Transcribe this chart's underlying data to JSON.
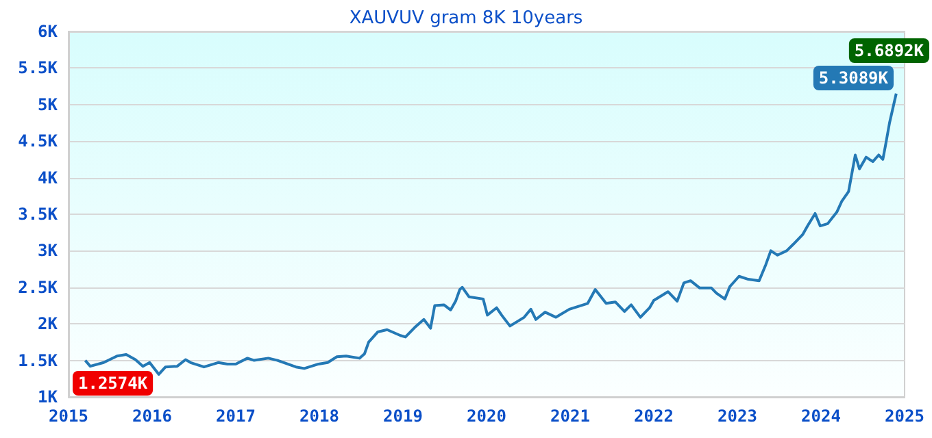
{
  "chart_data": {
    "type": "line",
    "title": "XAUVUV gram 8K 10years",
    "x": [
      2015.2,
      2015.26,
      2015.42,
      2015.58,
      2015.69,
      2015.8,
      2015.89,
      2015.97,
      2016.08,
      2016.16,
      2016.3,
      2016.4,
      2016.46,
      2016.62,
      2016.79,
      2016.9,
      2017.0,
      2017.14,
      2017.22,
      2017.39,
      2017.5,
      2017.72,
      2017.82,
      2017.99,
      2018.1,
      2018.21,
      2018.32,
      2018.48,
      2018.54,
      2018.59,
      2018.7,
      2018.81,
      2018.97,
      2019.03,
      2019.14,
      2019.25,
      2019.33,
      2019.38,
      2019.49,
      2019.57,
      2019.63,
      2019.68,
      2019.71,
      2019.79,
      2019.96,
      2020.01,
      2020.12,
      2020.18,
      2020.28,
      2020.45,
      2020.53,
      2020.59,
      2020.7,
      2020.83,
      2020.99,
      2021.21,
      2021.3,
      2021.43,
      2021.54,
      2021.65,
      2021.73,
      2021.84,
      2021.95,
      2022.0,
      2022.17,
      2022.28,
      2022.36,
      2022.44,
      2022.55,
      2022.69,
      2022.75,
      2022.85,
      2022.91,
      2023.02,
      2023.13,
      2023.26,
      2023.34,
      2023.4,
      2023.48,
      2023.59,
      2023.67,
      2023.78,
      2023.84,
      2023.93,
      2023.99,
      2024.08,
      2024.19,
      2024.25,
      2024.33,
      2024.41,
      2024.46,
      2024.54,
      2024.62,
      2024.69,
      2024.74,
      2024.77,
      2024.82,
      2024.87,
      2024.9
    ],
    "series": [
      {
        "color": "#2479b5",
        "values": [
          1500,
          1420,
          1470,
          1560,
          1580,
          1510,
          1420,
          1470,
          1310,
          1410,
          1420,
          1510,
          1470,
          1410,
          1470,
          1450,
          1450,
          1530,
          1500,
          1530,
          1500,
          1410,
          1390,
          1450,
          1470,
          1550,
          1560,
          1530,
          1590,
          1750,
          1890,
          1920,
          1840,
          1820,
          1950,
          2060,
          1940,
          2250,
          2260,
          2190,
          2310,
          2470,
          2500,
          2370,
          2340,
          2120,
          2220,
          2120,
          1970,
          2090,
          2200,
          2060,
          2160,
          2090,
          2200,
          2280,
          2470,
          2280,
          2300,
          2170,
          2260,
          2090,
          2220,
          2320,
          2440,
          2310,
          2560,
          2590,
          2490,
          2490,
          2420,
          2340,
          2510,
          2650,
          2610,
          2590,
          2810,
          3000,
          2940,
          3000,
          3090,
          3220,
          3340,
          3510,
          3340,
          3370,
          3530,
          3680,
          3810,
          4310,
          4120,
          4280,
          4220,
          4310,
          4250,
          4430,
          4750,
          5000,
          5150
        ]
      }
    ],
    "xlim": [
      2015,
      2025
    ],
    "xticks": [
      2015,
      2016,
      2017,
      2018,
      2019,
      2020,
      2021,
      2022,
      2023,
      2024,
      2025
    ],
    "ylim": [
      1000,
      6000
    ],
    "yticks": [
      {
        "value": 1000,
        "label": "1K"
      },
      {
        "value": 1500,
        "label": "1.5K"
      },
      {
        "value": 2000,
        "label": "2K"
      },
      {
        "value": 2500,
        "label": "2.5K"
      },
      {
        "value": 3000,
        "label": "3K"
      },
      {
        "value": 3500,
        "label": "3.5K"
      },
      {
        "value": 4000,
        "label": "4K"
      },
      {
        "value": 4500,
        "label": "4.5K"
      },
      {
        "value": 5000,
        "label": "5K"
      },
      {
        "value": 5500,
        "label": "5.5K"
      },
      {
        "value": 6000,
        "label": "6K"
      }
    ],
    "grid": "y",
    "marker": "none",
    "line_style": "solid",
    "annotations": [
      "1.2574K",
      "5.3089K",
      "5.6892K"
    ]
  }
}
